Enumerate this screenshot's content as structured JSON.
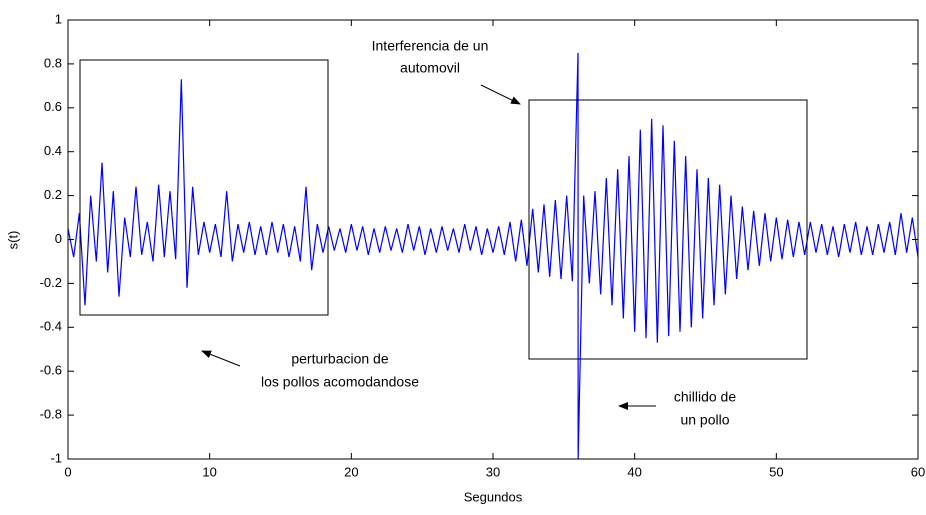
{
  "chart_data": {
    "type": "line",
    "xlabel": "Segundos",
    "ylabel": "s(t)",
    "annotations": [
      "Interferencia de un",
      "automovil",
      "perturbacion de",
      "los pollos acomodandose",
      "chillido de",
      "un pollo"
    ],
    "xlim": [
      0,
      60
    ],
    "ylim": [
      -1,
      1
    ],
    "xticks": [
      0,
      10,
      20,
      30,
      40,
      50,
      60
    ],
    "yticks": [
      -1,
      -0.8,
      -0.6,
      -0.4,
      -0.2,
      0,
      0.2,
      0.4,
      0.6,
      0.8,
      1
    ],
    "grid": false,
    "x": [
      0,
      0.4,
      0.8,
      1.2,
      1.6,
      2,
      2.4,
      2.8,
      3.2,
      3.6,
      4,
      4.4,
      4.8,
      5.2,
      5.6,
      6,
      6.4,
      6.8,
      7.2,
      7.6,
      8,
      8.4,
      8.8,
      9.2,
      9.6,
      10,
      10.4,
      10.8,
      11.2,
      11.6,
      12,
      12.4,
      12.8,
      13.2,
      13.6,
      14,
      14.4,
      14.8,
      15.2,
      15.6,
      16,
      16.4,
      16.8,
      17.2,
      17.6,
      18,
      18.4,
      18.8,
      19.2,
      19.6,
      20,
      20.4,
      20.8,
      21.2,
      21.6,
      22,
      22.4,
      22.8,
      23.2,
      23.6,
      24,
      24.4,
      24.8,
      25.2,
      25.6,
      26,
      26.4,
      26.8,
      27.2,
      27.6,
      28,
      28.4,
      28.8,
      29.2,
      29.6,
      30,
      30.4,
      30.8,
      31.2,
      31.6,
      32,
      32.4,
      32.8,
      33.2,
      33.6,
      34,
      34.4,
      34.8,
      35.2,
      35.6,
      36,
      36.01,
      36.4,
      36.8,
      37.2,
      37.6,
      38,
      38.4,
      38.8,
      39.2,
      39.6,
      40,
      40.4,
      40.8,
      41.2,
      41.6,
      42,
      42.4,
      42.8,
      43.2,
      43.6,
      44,
      44.4,
      44.8,
      45.2,
      45.6,
      46,
      46.4,
      46.8,
      47.2,
      47.6,
      48,
      48.4,
      48.8,
      49.2,
      49.6,
      50,
      50.4,
      50.8,
      51.2,
      51.6,
      52,
      52.4,
      52.8,
      53.2,
      53.6,
      54,
      54.4,
      54.8,
      55.2,
      55.6,
      56,
      56.4,
      56.8,
      57.2,
      57.6,
      58,
      58.4,
      58.8,
      59.2,
      59.6,
      60
    ],
    "series": [
      {
        "name": "s(t)",
        "color": "#0000ff",
        "values": [
          0.05,
          -0.08,
          0.12,
          -0.3,
          0.2,
          -0.1,
          0.35,
          -0.15,
          0.22,
          -0.26,
          0.1,
          -0.08,
          0.24,
          -0.07,
          0.08,
          -0.1,
          0.25,
          -0.08,
          0.22,
          -0.09,
          0.73,
          -0.22,
          0.24,
          -0.07,
          0.08,
          -0.06,
          0.07,
          -0.08,
          0.22,
          -0.1,
          0.07,
          -0.06,
          0.08,
          -0.07,
          0.06,
          -0.07,
          0.08,
          -0.06,
          0.07,
          -0.08,
          0.06,
          -0.1,
          0.24,
          -0.14,
          0.07,
          -0.06,
          0.06,
          -0.05,
          0.05,
          -0.06,
          0.07,
          -0.05,
          0.06,
          -0.07,
          0.05,
          -0.06,
          0.06,
          -0.05,
          0.05,
          -0.06,
          0.07,
          -0.05,
          0.06,
          -0.07,
          0.05,
          -0.06,
          0.06,
          -0.05,
          0.05,
          -0.06,
          0.07,
          -0.05,
          0.06,
          -0.07,
          0.05,
          -0.06,
          0.06,
          -0.07,
          0.08,
          -0.1,
          0.09,
          -0.12,
          0.14,
          -0.15,
          0.16,
          -0.17,
          0.18,
          -0.18,
          0.2,
          -0.19,
          0.85,
          -1,
          0.2,
          -0.2,
          0.22,
          -0.25,
          0.28,
          -0.3,
          0.32,
          -0.36,
          0.38,
          -0.42,
          0.5,
          -0.45,
          0.55,
          -0.47,
          0.52,
          -0.44,
          0.45,
          -0.42,
          0.38,
          -0.4,
          0.32,
          -0.36,
          0.28,
          -0.3,
          0.25,
          -0.25,
          0.2,
          -0.18,
          0.15,
          -0.14,
          0.13,
          -0.12,
          0.12,
          -0.1,
          0.1,
          -0.09,
          0.09,
          -0.08,
          0.08,
          -0.07,
          0.08,
          -0.06,
          0.07,
          -0.07,
          0.06,
          -0.08,
          0.07,
          -0.06,
          0.08,
          -0.07,
          0.06,
          -0.07,
          0.07,
          -0.06,
          0.08,
          -0.07,
          0.12,
          -0.06,
          0.1,
          -0.08
        ]
      }
    ]
  }
}
